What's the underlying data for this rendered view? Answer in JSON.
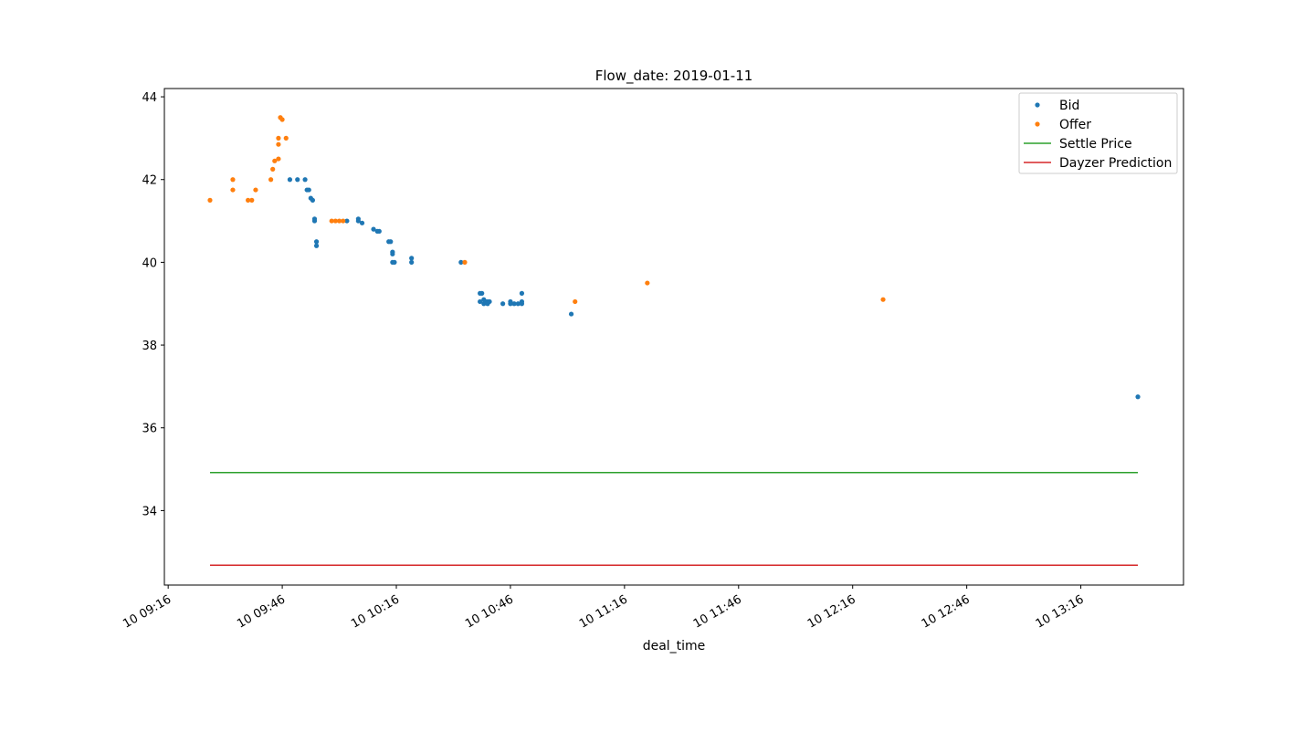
{
  "chart_data": {
    "type": "scatter",
    "title": "Flow_date: 2019-01-11",
    "xlabel": "deal_time",
    "ylabel": "",
    "xlim": [
      "2019-01-10 09:15",
      "2019-01-10 13:43"
    ],
    "ylim": [
      32.2,
      44.2
    ],
    "x_tick_values": [
      "2019-01-10 09:16",
      "2019-01-10 09:46",
      "2019-01-10 10:16",
      "2019-01-10 10:46",
      "2019-01-10 11:16",
      "2019-01-10 11:46",
      "2019-01-10 12:16",
      "2019-01-10 12:46",
      "2019-01-10 13:16"
    ],
    "x_tick_labels": [
      "10 09:16",
      "10 09:46",
      "10 10:16",
      "10 10:46",
      "10 11:16",
      "10 11:46",
      "10 12:16",
      "10 12:46",
      "10 13:16"
    ],
    "y_ticks": [
      34,
      36,
      38,
      40,
      42,
      44
    ],
    "grid": false,
    "legend_position": "top-right",
    "series": [
      {
        "name": "Bid",
        "kind": "points",
        "color": "#1f77b4",
        "points": [
          [
            "2019-01-10 09:48",
            42.0
          ],
          [
            "2019-01-10 09:50",
            42.0
          ],
          [
            "2019-01-10 09:52",
            42.0
          ],
          [
            "2019-01-10 09:52:30",
            41.75
          ],
          [
            "2019-01-10 09:53",
            41.75
          ],
          [
            "2019-01-10 09:53:30",
            41.55
          ],
          [
            "2019-01-10 09:54",
            41.5
          ],
          [
            "2019-01-10 09:54:30",
            41.05
          ],
          [
            "2019-01-10 09:54:30",
            41.0
          ],
          [
            "2019-01-10 09:55",
            40.5
          ],
          [
            "2019-01-10 09:55",
            40.4
          ],
          [
            "2019-01-10 10:03",
            41.0
          ],
          [
            "2019-01-10 10:06",
            41.05
          ],
          [
            "2019-01-10 10:06",
            41.0
          ],
          [
            "2019-01-10 10:07",
            40.95
          ],
          [
            "2019-01-10 10:10",
            40.8
          ],
          [
            "2019-01-10 10:11",
            40.75
          ],
          [
            "2019-01-10 10:11:30",
            40.75
          ],
          [
            "2019-01-10 10:14",
            40.5
          ],
          [
            "2019-01-10 10:14:30",
            40.5
          ],
          [
            "2019-01-10 10:15",
            40.25
          ],
          [
            "2019-01-10 10:15",
            40.2
          ],
          [
            "2019-01-10 10:15",
            40.0
          ],
          [
            "2019-01-10 10:15:30",
            40.0
          ],
          [
            "2019-01-10 10:20",
            40.1
          ],
          [
            "2019-01-10 10:20",
            40.0
          ],
          [
            "2019-01-10 10:33",
            40.0
          ],
          [
            "2019-01-10 10:38",
            39.25
          ],
          [
            "2019-01-10 10:38:30",
            39.25
          ],
          [
            "2019-01-10 10:38",
            39.05
          ],
          [
            "2019-01-10 10:39",
            39.0
          ],
          [
            "2019-01-10 10:39",
            39.1
          ],
          [
            "2019-01-10 10:39:30",
            39.05
          ],
          [
            "2019-01-10 10:40",
            39.05
          ],
          [
            "2019-01-10 10:40",
            39.0
          ],
          [
            "2019-01-10 10:40:30",
            39.05
          ],
          [
            "2019-01-10 10:44",
            39.0
          ],
          [
            "2019-01-10 10:46",
            39.05
          ],
          [
            "2019-01-10 10:46",
            39.0
          ],
          [
            "2019-01-10 10:47",
            39.0
          ],
          [
            "2019-01-10 10:48",
            39.0
          ],
          [
            "2019-01-10 10:49",
            39.25
          ],
          [
            "2019-01-10 10:49",
            39.05
          ],
          [
            "2019-01-10 10:49",
            39.0
          ],
          [
            "2019-01-10 11:02",
            38.75
          ],
          [
            "2019-01-10 13:31",
            36.75
          ]
        ]
      },
      {
        "name": "Offer",
        "kind": "points",
        "color": "#ff7f0e",
        "points": [
          [
            "2019-01-10 09:27",
            41.5
          ],
          [
            "2019-01-10 09:33",
            41.75
          ],
          [
            "2019-01-10 09:33",
            42.0
          ],
          [
            "2019-01-10 09:37",
            41.5
          ],
          [
            "2019-01-10 09:38",
            41.5
          ],
          [
            "2019-01-10 09:39",
            41.75
          ],
          [
            "2019-01-10 09:43",
            42.0
          ],
          [
            "2019-01-10 09:43:30",
            42.25
          ],
          [
            "2019-01-10 09:44",
            42.45
          ],
          [
            "2019-01-10 09:45",
            42.5
          ],
          [
            "2019-01-10 09:45",
            42.85
          ],
          [
            "2019-01-10 09:45",
            43.0
          ],
          [
            "2019-01-10 09:45:30",
            43.5
          ],
          [
            "2019-01-10 09:46",
            43.45
          ],
          [
            "2019-01-10 09:47",
            43.0
          ],
          [
            "2019-01-10 09:59",
            41.0
          ],
          [
            "2019-01-10 10:00",
            41.0
          ],
          [
            "2019-01-10 10:01",
            41.0
          ],
          [
            "2019-01-10 10:02",
            41.0
          ],
          [
            "2019-01-10 10:34",
            40.0
          ],
          [
            "2019-01-10 11:03",
            39.05
          ],
          [
            "2019-01-10 11:22",
            39.5
          ],
          [
            "2019-01-10 12:24",
            39.1
          ]
        ]
      },
      {
        "name": "Settle Price",
        "kind": "line",
        "color": "#2ca02c",
        "x": [
          "2019-01-10 09:27",
          "2019-01-10 13:31"
        ],
        "y": [
          34.92,
          34.92
        ]
      },
      {
        "name": "Dayzer Prediction",
        "kind": "line",
        "color": "#d62728",
        "x": [
          "2019-01-10 09:27",
          "2019-01-10 13:31"
        ],
        "y": [
          32.68,
          32.68
        ]
      }
    ]
  }
}
